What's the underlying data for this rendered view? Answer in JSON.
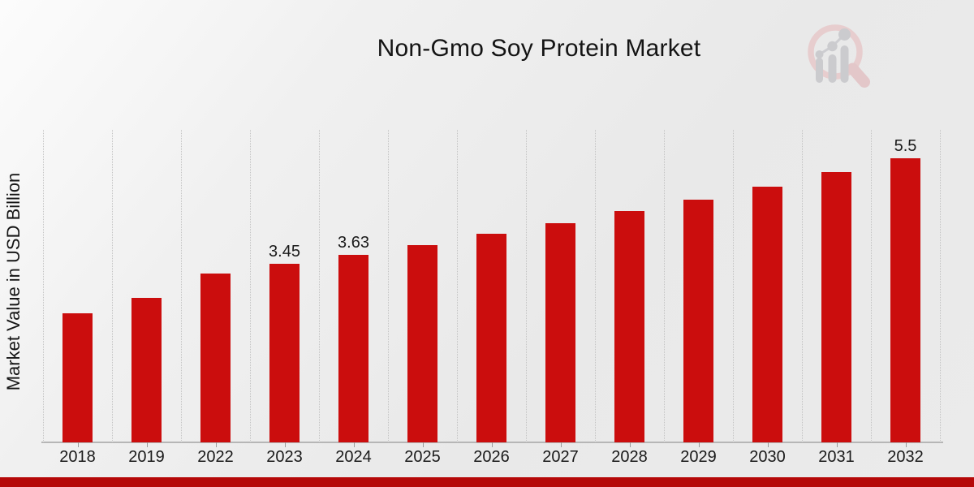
{
  "title": "Non-Gmo Soy Protein Market",
  "y_axis_label": "Market Value in USD Billion",
  "logo": {
    "name": "market-research-future-watermark-logo"
  },
  "colors": {
    "bar": "#cb0d0d",
    "bottom_strip": "#b50808",
    "gridline": "#c3c3c3",
    "axis_line": "#b6b6b6",
    "text": "#1a1a1a",
    "logo_pink": "#e7c9ca",
    "logo_gray": "#c6c6ca"
  },
  "chart_data": {
    "type": "bar",
    "title": "Non-Gmo Soy Protein Market",
    "xlabel": "",
    "ylabel": "Market Value in USD Billion",
    "categories": [
      "2018",
      "2019",
      "2022",
      "2023",
      "2024",
      "2025",
      "2026",
      "2027",
      "2028",
      "2029",
      "2030",
      "2031",
      "2032"
    ],
    "values": [
      2.5,
      2.8,
      3.27,
      3.45,
      3.63,
      3.82,
      4.03,
      4.24,
      4.47,
      4.7,
      4.95,
      5.22,
      5.5
    ],
    "bar_labels": [
      "",
      "",
      "",
      "3.45",
      "3.63",
      "",
      "",
      "",
      "",
      "",
      "",
      "",
      "5.5"
    ],
    "ylim": [
      0,
      6.05
    ],
    "grid": "vertical-dotted",
    "legend": "none",
    "bar_color": "#cb0d0d"
  }
}
